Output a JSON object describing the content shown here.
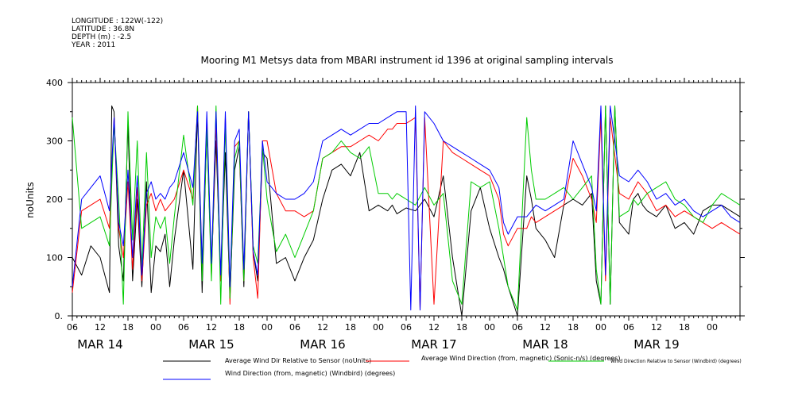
{
  "meta": {
    "longitude": "LONGITUDE : 122W(-122)",
    "latitude": "LATITUDE : 36.8N",
    "depth": "DEPTH (m) : -2.5",
    "year": "YEAR : 2011"
  },
  "chart_data": {
    "type": "line",
    "title": "Mooring M1 Metsys data from MBARI instrument id 1396 at original sampling intervals",
    "ylabel": "noUnits",
    "ylim": [
      0,
      400
    ],
    "yticks": [
      0,
      100,
      200,
      300,
      400
    ],
    "yticklabels": [
      "0.",
      "100",
      "200",
      "300",
      "400"
    ],
    "xlim_hours": [
      0,
      144
    ],
    "xticklabels": [
      "06",
      "12",
      "18",
      "00",
      "06",
      "12",
      "18",
      "00",
      "06",
      "12",
      "18",
      "00",
      "06",
      "12",
      "18",
      "00",
      "06",
      "12",
      "18",
      "00",
      "06",
      "12",
      "18",
      "00"
    ],
    "date_labels": [
      "MAR 14",
      "MAR 15",
      "MAR 16",
      "MAR 17",
      "MAR 18",
      "MAR 19"
    ],
    "grid": false,
    "legend_position": "bottom",
    "series": [
      {
        "name": "Average Wind Dir Relative to Sensor (noUnits)",
        "color": "#000000",
        "x": [
          0,
          2,
          4,
          6,
          8,
          8.5,
          9,
          10,
          11,
          12,
          13,
          14,
          15,
          16,
          17,
          18,
          19,
          20,
          21,
          22,
          24,
          26,
          27,
          28,
          29,
          30,
          31,
          32,
          33,
          34,
          35,
          36,
          37,
          38,
          39,
          40,
          41,
          42,
          44,
          46,
          48,
          50,
          52,
          54,
          56,
          58,
          60,
          62,
          64,
          66,
          68,
          69,
          70,
          72,
          74,
          76,
          78,
          80,
          82,
          84,
          86,
          88,
          90,
          92,
          93,
          94,
          96,
          98,
          99,
          100,
          102,
          104,
          106,
          108,
          110,
          112,
          113,
          114,
          115,
          116,
          117,
          118,
          120,
          121,
          122,
          123,
          124,
          126,
          128,
          130,
          132,
          134,
          136,
          138,
          140,
          142,
          144
        ],
        "y": [
          100,
          70,
          120,
          100,
          40,
          360,
          350,
          120,
          60,
          330,
          60,
          200,
          50,
          230,
          40,
          120,
          110,
          140,
          50,
          130,
          250,
          80,
          350,
          40,
          320,
          80,
          300,
          60,
          280,
          30,
          250,
          290,
          50,
          350,
          110,
          60,
          280,
          270,
          90,
          100,
          60,
          100,
          130,
          200,
          250,
          260,
          240,
          280,
          180,
          190,
          180,
          190,
          175,
          185,
          180,
          200,
          170,
          240,
          100,
          0,
          180,
          220,
          150,
          100,
          80,
          50,
          0,
          240,
          200,
          150,
          130,
          100,
          190,
          200,
          190,
          210,
          60,
          20,
          360,
          20,
          360,
          160,
          140,
          200,
          210,
          190,
          180,
          170,
          190,
          150,
          160,
          140,
          180,
          190,
          190,
          180,
          170
        ]
      },
      {
        "name": "Average Wind Direction (from, magnetic) (Sonic-n/s) (degrees)",
        "color": "#ff0000",
        "x": [
          0,
          2,
          4,
          6,
          8,
          9,
          10,
          11,
          12,
          13,
          14,
          15,
          16,
          17,
          18,
          19,
          20,
          21,
          22,
          24,
          26,
          27,
          28,
          29,
          30,
          31,
          32,
          33,
          34,
          35,
          36,
          37,
          38,
          39,
          40,
          41,
          42,
          44,
          46,
          48,
          50,
          52,
          54,
          56,
          58,
          60,
          62,
          64,
          66,
          68,
          69,
          70,
          72,
          74,
          75,
          76,
          78,
          80,
          82,
          84,
          86,
          88,
          90,
          92,
          93,
          94,
          96,
          98,
          99,
          100,
          102,
          104,
          106,
          108,
          110,
          112,
          113,
          114,
          115,
          116,
          118,
          120,
          122,
          124,
          126,
          128,
          130,
          132,
          134,
          136,
          138,
          140,
          142,
          144
        ],
        "y": [
          40,
          180,
          190,
          200,
          150,
          340,
          150,
          100,
          230,
          80,
          220,
          60,
          190,
          210,
          180,
          200,
          180,
          190,
          200,
          250,
          200,
          360,
          80,
          330,
          70,
          330,
          60,
          340,
          20,
          290,
          300,
          60,
          350,
          100,
          30,
          300,
          300,
          210,
          180,
          180,
          170,
          180,
          270,
          280,
          290,
          290,
          300,
          310,
          300,
          320,
          320,
          330,
          330,
          340,
          10,
          340,
          20,
          300,
          280,
          270,
          260,
          250,
          240,
          200,
          140,
          120,
          150,
          150,
          170,
          160,
          170,
          180,
          190,
          270,
          240,
          200,
          160,
          340,
          60,
          340,
          210,
          200,
          230,
          210,
          180,
          190,
          170,
          180,
          170,
          160,
          150,
          160,
          150,
          140
        ]
      },
      {
        "name": "Wind Direction Relative to Sensor (Windbird) (degrees)",
        "color": "#00cc00",
        "x": [
          0,
          2,
          4,
          6,
          8,
          9,
          10,
          11,
          12,
          13,
          14,
          15,
          16,
          17,
          18,
          19,
          20,
          21,
          22,
          24,
          26,
          27,
          28,
          29,
          30,
          31,
          32,
          33,
          34,
          35,
          36,
          37,
          38,
          39,
          40,
          41,
          42,
          44,
          46,
          48,
          50,
          52,
          54,
          56,
          58,
          60,
          62,
          64,
          66,
          68,
          69,
          70,
          72,
          74,
          76,
          78,
          80,
          82,
          84,
          86,
          88,
          90,
          92,
          93,
          94,
          96,
          98,
          99,
          100,
          102,
          104,
          106,
          108,
          110,
          112,
          113,
          114,
          115,
          116,
          117,
          118,
          120,
          121,
          122,
          124,
          126,
          128,
          130,
          132,
          134,
          136,
          138,
          140,
          142,
          144
        ],
        "y": [
          340,
          150,
          160,
          170,
          120,
          330,
          200,
          20,
          350,
          130,
          300,
          80,
          280,
          100,
          170,
          150,
          170,
          90,
          170,
          310,
          190,
          360,
          60,
          320,
          60,
          360,
          20,
          330,
          30,
          270,
          300,
          60,
          350,
          120,
          90,
          290,
          200,
          110,
          140,
          100,
          140,
          180,
          270,
          280,
          300,
          280,
          270,
          290,
          210,
          210,
          200,
          210,
          200,
          190,
          220,
          190,
          210,
          60,
          20,
          230,
          220,
          230,
          150,
          100,
          50,
          10,
          340,
          250,
          200,
          200,
          210,
          220,
          200,
          220,
          240,
          80,
          20,
          360,
          20,
          360,
          170,
          180,
          200,
          190,
          210,
          220,
          230,
          200,
          190,
          170,
          160,
          190,
          210,
          200,
          190
        ]
      },
      {
        "name": "Wind Direction (from, magnetic) (Windbird) (degrees)",
        "color": "#0000ff",
        "x": [
          0,
          2,
          4,
          6,
          8,
          9,
          10,
          11,
          12,
          13,
          14,
          15,
          16,
          17,
          18,
          19,
          20,
          21,
          22,
          24,
          26,
          27,
          28,
          29,
          30,
          31,
          32,
          33,
          34,
          35,
          36,
          37,
          38,
          39,
          40,
          41,
          42,
          44,
          46,
          48,
          50,
          52,
          54,
          56,
          58,
          60,
          62,
          64,
          66,
          68,
          70,
          72,
          73,
          74,
          75,
          76,
          78,
          80,
          82,
          84,
          86,
          88,
          90,
          92,
          93,
          94,
          96,
          98,
          100,
          102,
          104,
          106,
          108,
          110,
          112,
          113,
          114,
          115,
          116,
          118,
          120,
          122,
          124,
          126,
          128,
          130,
          132,
          134,
          136,
          138,
          140,
          142,
          144
        ],
        "y": [
          50,
          200,
          220,
          240,
          180,
          340,
          160,
          120,
          250,
          100,
          240,
          70,
          210,
          230,
          200,
          210,
          200,
          220,
          230,
          280,
          220,
          350,
          90,
          350,
          90,
          350,
          70,
          350,
          50,
          300,
          320,
          80,
          350,
          110,
          70,
          300,
          230,
          210,
          200,
          200,
          210,
          230,
          300,
          310,
          320,
          310,
          320,
          330,
          330,
          340,
          350,
          350,
          10,
          360,
          10,
          350,
          330,
          300,
          290,
          280,
          270,
          260,
          250,
          220,
          160,
          140,
          170,
          170,
          190,
          180,
          190,
          200,
          300,
          260,
          220,
          180,
          360,
          70,
          360,
          240,
          230,
          250,
          230,
          200,
          210,
          190,
          200,
          180,
          170,
          180,
          190,
          170,
          160
        ]
      }
    ]
  }
}
